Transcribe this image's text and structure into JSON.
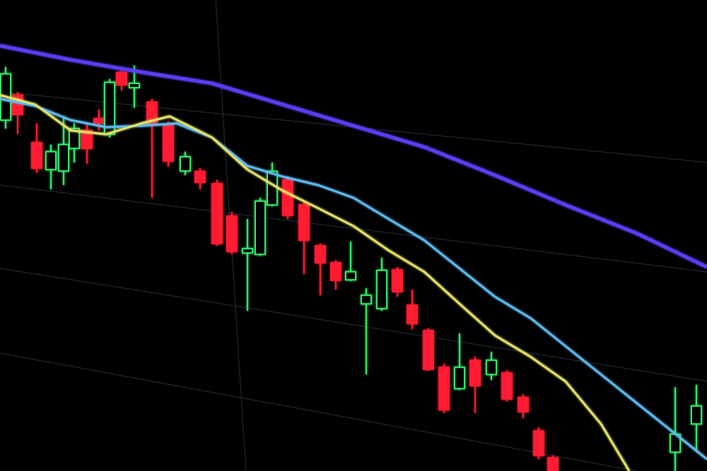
{
  "chart_data": {
    "type": "candlestick",
    "xlim": [
      0,
      1000
    ],
    "ylim": [
      0,
      100
    ],
    "up_color": "#33ee6e",
    "down_color": "#ff1f33",
    "x": [
      8,
      25,
      52,
      72,
      90,
      105,
      123,
      140,
      155,
      172,
      190,
      215,
      238,
      262,
      283,
      307,
      328,
      350,
      368,
      385,
      407,
      430,
      453,
      475,
      496,
      518,
      540,
      562,
      583,
      606,
      628,
      650,
      672,
      695,
      717,
      740,
      762,
      782,
      955,
      985
    ],
    "open": [
      74.5,
      79.8,
      69.7,
      64,
      63.7,
      68.5,
      72.3,
      74.8,
      71.5,
      84.6,
      81.4,
      78.3,
      73.5,
      63.7,
      63.6,
      61,
      54.1,
      46.3,
      46,
      56.5,
      61.8,
      56.5,
      47.8,
      44.2,
      40.6,
      35.5,
      34.5,
      42.7,
      35.2,
      29.8,
      22,
      17.5,
      23.5,
      20.5,
      20.8,
      15.6,
      8.5,
      2.8,
      4,
      10
    ],
    "high": [
      85.8,
      80.5,
      73.8,
      69.3,
      75.3,
      73.8,
      73.8,
      76.8,
      83.2,
      85.3,
      86.1,
      79,
      74.2,
      67.8,
      64.3,
      61.8,
      55,
      53.5,
      58,
      65.5,
      62.5,
      57.3,
      48.3,
      44.8,
      48.7,
      38.8,
      45.3,
      43.3,
      38.5,
      30.3,
      22.8,
      29.2,
      24.3,
      25.3,
      21.4,
      16.3,
      9.3,
      3.3,
      17.8,
      18.3
    ],
    "low": [
      72.7,
      71.5,
      63.3,
      59.8,
      60.7,
      65.5,
      65.2,
      72.3,
      70.8,
      80.8,
      77.1,
      58,
      64.6,
      62.8,
      59.8,
      47.8,
      46,
      34,
      45.7,
      56.2,
      53.5,
      41.8,
      37.3,
      38.5,
      40.3,
      20.5,
      34,
      37,
      30.1,
      21.3,
      12.3,
      17.2,
      12.3,
      19.3,
      14.8,
      11.2,
      2.5,
      0,
      0,
      4
    ],
    "close": [
      84.3,
      75.7,
      64.3,
      67.8,
      69.3,
      72.7,
      68.5,
      73.9,
      82.5,
      82,
      82.3,
      73.8,
      65.8,
      66.7,
      61.3,
      48.3,
      46.6,
      47.2,
      57.3,
      63.6,
      54.3,
      49,
      44.2,
      40.5,
      42.3,
      37.3,
      42.6,
      38.1,
      31.3,
      21.6,
      13,
      22,
      18.1,
      23.5,
      15.3,
      12.6,
      3.3,
      0,
      7.8,
      13.8
    ],
    "lines": [
      {
        "color": "#5b3df5",
        "x": [
          0,
          100,
          200,
          300,
          400,
          500,
          600,
          700,
          800,
          900,
          1000
        ],
        "values": [
          90.3,
          87.3,
          84.7,
          82.3,
          77.8,
          73.3,
          68.8,
          62.8,
          56.5,
          50.5,
          43.3
        ]
      },
      {
        "color": "#5cbcf2",
        "x": [
          0,
          50,
          100,
          150,
          200,
          250,
          300,
          350,
          400,
          450,
          500,
          550,
          600,
          650,
          700,
          750,
          800,
          850,
          900,
          950,
          1000
        ],
        "values": [
          79,
          77.5,
          74.5,
          73,
          73.3,
          73.8,
          70.8,
          64.8,
          62.5,
          60.7,
          58,
          53.5,
          49,
          43,
          37,
          32.5,
          26.5,
          20.5,
          14.5,
          8.5,
          2.5
        ]
      },
      {
        "color": "#e6e266",
        "x": [
          0,
          50,
          100,
          150,
          200,
          240,
          300,
          350,
          400,
          450,
          500,
          550,
          600,
          650,
          700,
          750,
          800,
          850,
          890
        ],
        "values": [
          79.8,
          77.8,
          72.3,
          71.5,
          73.8,
          75.3,
          70.8,
          64,
          59.5,
          55.8,
          52,
          46.8,
          42.3,
          35.5,
          28.8,
          24.3,
          19,
          10,
          0
        ]
      }
    ]
  }
}
